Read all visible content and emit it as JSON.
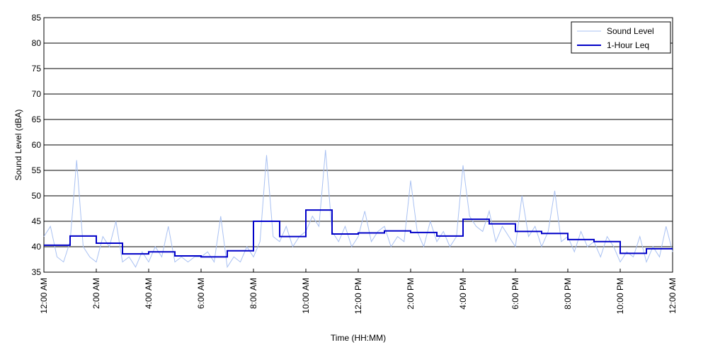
{
  "chart_data": {
    "type": "line",
    "xlabel": "Time (HH:MM)",
    "ylabel": "Sound Level (dBA)",
    "xlim": [
      0,
      24
    ],
    "xticks": [
      {
        "value": 0,
        "label": "12:00 AM"
      },
      {
        "value": 2,
        "label": "2:00 AM"
      },
      {
        "value": 4,
        "label": "4:00 AM"
      },
      {
        "value": 6,
        "label": "6:00 AM"
      },
      {
        "value": 8,
        "label": "8:00 AM"
      },
      {
        "value": 10,
        "label": "10:00 AM"
      },
      {
        "value": 12,
        "label": "12:00 PM"
      },
      {
        "value": 14,
        "label": "2:00 PM"
      },
      {
        "value": 16,
        "label": "4:00 PM"
      },
      {
        "value": 18,
        "label": "6:00 PM"
      },
      {
        "value": 20,
        "label": "8:00 PM"
      },
      {
        "value": 22,
        "label": "10:00 PM"
      },
      {
        "value": 24,
        "label": "12:00 AM"
      }
    ],
    "ylim": [
      35,
      85
    ],
    "yticks": [
      35,
      40,
      45,
      50,
      55,
      60,
      65,
      70,
      75,
      80,
      85
    ],
    "grid": true,
    "legend": "upper right",
    "series": [
      {
        "name": "Sound Level",
        "color": "#a9c1f2",
        "step": false,
        "x": [
          0,
          0.25,
          0.5,
          0.75,
          1,
          1.25,
          1.5,
          1.75,
          2,
          2.25,
          2.5,
          2.75,
          3,
          3.25,
          3.5,
          3.75,
          4,
          4.25,
          4.5,
          4.75,
          5,
          5.25,
          5.5,
          5.75,
          6,
          6.25,
          6.5,
          6.75,
          7,
          7.25,
          7.5,
          7.75,
          8,
          8.25,
          8.5,
          8.75,
          9,
          9.25,
          9.5,
          9.75,
          10,
          10.25,
          10.5,
          10.75,
          11,
          11.25,
          11.5,
          11.75,
          12,
          12.25,
          12.5,
          12.75,
          13,
          13.25,
          13.5,
          13.75,
          14,
          14.25,
          14.5,
          14.75,
          15,
          15.25,
          15.5,
          15.75,
          16,
          16.25,
          16.5,
          16.75,
          17,
          17.25,
          17.5,
          17.75,
          18,
          18.25,
          18.5,
          18.75,
          19,
          19.25,
          19.5,
          19.75,
          20,
          20.25,
          20.5,
          20.75,
          21,
          21.25,
          21.5,
          21.75,
          22,
          22.25,
          22.5,
          22.75,
          23,
          23.25,
          23.5,
          23.75,
          24
        ],
        "values": [
          42,
          44,
          38,
          37,
          41,
          57,
          40,
          38,
          37,
          42,
          40,
          45,
          37,
          38,
          36,
          39,
          37,
          40,
          38,
          44,
          37,
          38,
          37,
          38,
          38,
          39,
          37,
          46,
          36,
          38,
          37,
          40,
          38,
          41,
          58,
          42,
          41,
          44,
          40,
          42,
          43,
          46,
          44,
          59,
          43,
          41,
          44,
          40,
          42,
          47,
          41,
          43,
          44,
          40,
          42,
          41,
          53,
          43,
          40,
          45,
          41,
          43,
          40,
          42,
          56,
          46,
          44,
          43,
          47,
          41,
          44,
          42,
          40,
          50,
          42,
          44,
          40,
          43,
          51,
          41,
          42,
          39,
          43,
          40,
          41,
          38,
          42,
          40,
          37,
          39,
          38,
          42,
          37,
          40,
          38,
          44,
          39
        ]
      },
      {
        "name": "1-Hour Leq",
        "color": "#0000c8",
        "step": true,
        "x": [
          0,
          1,
          2,
          3,
          4,
          5,
          6,
          7,
          8,
          9,
          10,
          11,
          12,
          13,
          14,
          15,
          16,
          17,
          18,
          19,
          20,
          21,
          22,
          23
        ],
        "values": [
          40.3,
          42.1,
          40.7,
          38.6,
          39.0,
          38.2,
          38.0,
          39.2,
          45.0,
          42.0,
          47.2,
          42.5,
          42.7,
          43.1,
          42.8,
          42.1,
          45.4,
          44.5,
          43.0,
          42.6,
          41.4,
          41.0,
          38.7,
          39.6
        ]
      }
    ]
  }
}
